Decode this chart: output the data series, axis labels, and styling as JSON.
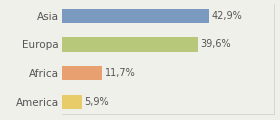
{
  "categories": [
    "America",
    "Africa",
    "Europa",
    "Asia"
  ],
  "values": [
    5.9,
    11.7,
    39.6,
    42.9
  ],
  "bar_colors": [
    "#e8cc6a",
    "#e8a070",
    "#b8c87a",
    "#7a9ac0"
  ],
  "labels": [
    "5,9%",
    "11,7%",
    "39,6%",
    "42,9%"
  ],
  "xlim": [
    0,
    62
  ],
  "background_color": "#f0f0eb",
  "bar_height": 0.5,
  "label_fontsize": 7,
  "tick_fontsize": 7.5
}
